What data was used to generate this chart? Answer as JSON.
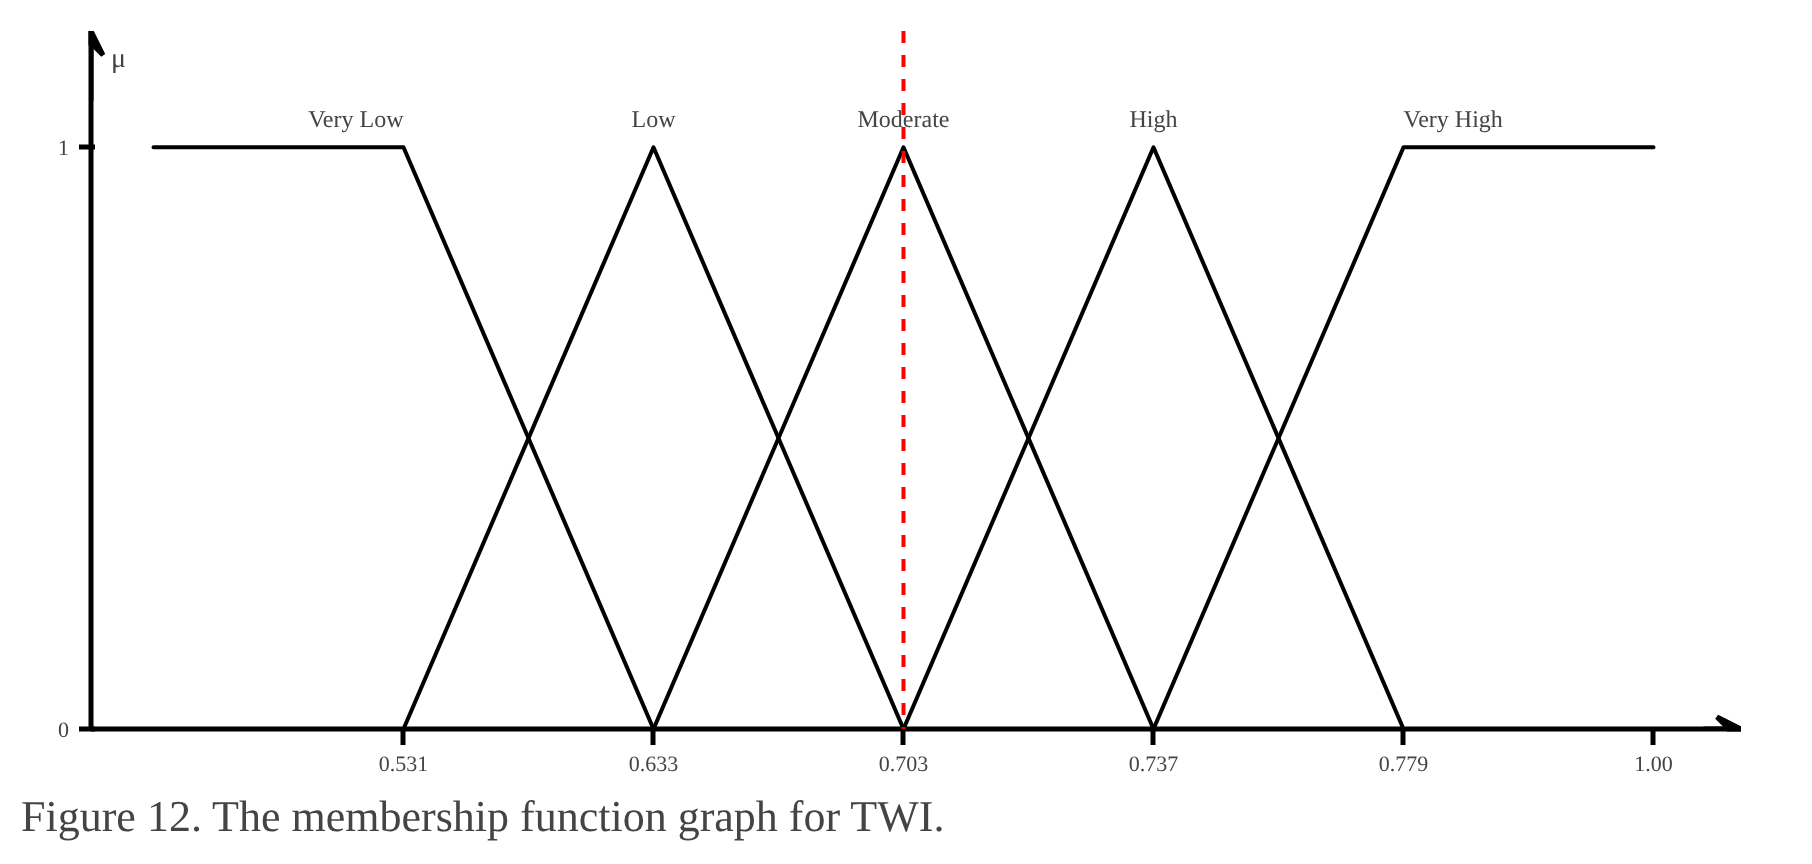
{
  "chart_data": {
    "type": "line",
    "ylabel": "μ",
    "categories": [
      null,
      "0.531",
      "0.633",
      "0.703",
      "0.737",
      "0.779",
      "1.00"
    ],
    "series": [
      {
        "name": "Very Low",
        "color": "#000000",
        "values": [
          1,
          1,
          0,
          null,
          null,
          null,
          null
        ]
      },
      {
        "name": "Low",
        "color": "#000000",
        "values": [
          null,
          0,
          1,
          0,
          null,
          null,
          null
        ]
      },
      {
        "name": "Moderate",
        "color": "#000000",
        "values": [
          null,
          null,
          0,
          1,
          0,
          null,
          null
        ]
      },
      {
        "name": "High",
        "color": "#000000",
        "values": [
          null,
          null,
          null,
          0,
          1,
          0,
          null
        ]
      },
      {
        "name": "Very High",
        "color": "#000000",
        "values": [
          null,
          null,
          null,
          null,
          0,
          1,
          1
        ]
      }
    ],
    "ylim": [
      0,
      1.2
    ],
    "yticks": [
      0,
      1
    ],
    "ref_lines": [
      {
        "axis": "x",
        "value": "0.703",
        "color": "#ff0000",
        "line_style": "dashed"
      }
    ],
    "grid": false,
    "legend": false,
    "marker": "none",
    "line_style": "solid",
    "annotations": [
      "Figure 12. The membership function graph for TWI."
    ]
  }
}
